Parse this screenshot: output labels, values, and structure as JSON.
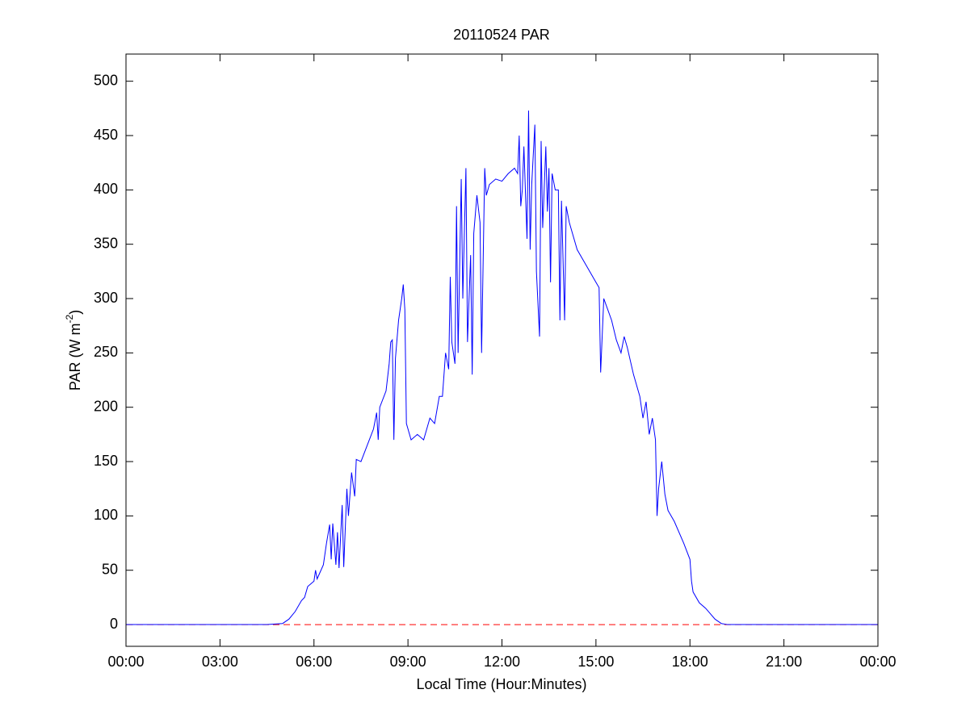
{
  "chart_data": {
    "type": "line",
    "title": "20110524 PAR",
    "xlabel": "Local Time (Hour:Minutes)",
    "ylabel": {
      "text": "PAR (W m",
      "sup": "-2",
      "end": ")"
    },
    "x": [
      0,
      3,
      4.5,
      5.0,
      5.2,
      5.4,
      5.6,
      5.7,
      5.8,
      6.0,
      6.05,
      6.1,
      6.3,
      6.4,
      6.5,
      6.55,
      6.6,
      6.7,
      6.75,
      6.8,
      6.9,
      6.95,
      7.05,
      7.1,
      7.2,
      7.3,
      7.35,
      7.5,
      7.7,
      7.9,
      8.0,
      8.05,
      8.1,
      8.3,
      8.4,
      8.45,
      8.5,
      8.55,
      8.6,
      8.7,
      8.8,
      8.85,
      8.9,
      8.95,
      9.0,
      9.1,
      9.3,
      9.5,
      9.7,
      9.85,
      10.0,
      10.1,
      10.2,
      10.3,
      10.35,
      10.4,
      10.5,
      10.55,
      10.6,
      10.7,
      10.75,
      10.85,
      10.9,
      11.0,
      11.05,
      11.1,
      11.2,
      11.3,
      11.35,
      11.45,
      11.5,
      11.6,
      11.8,
      12.0,
      12.2,
      12.4,
      12.5,
      12.55,
      12.6,
      12.65,
      12.7,
      12.8,
      12.85,
      12.9,
      12.95,
      13.05,
      13.1,
      13.2,
      13.25,
      13.3,
      13.4,
      13.45,
      13.5,
      13.55,
      13.6,
      13.7,
      13.8,
      13.85,
      13.9,
      14.0,
      14.05,
      14.15,
      14.25,
      14.4,
      14.7,
      15.0,
      15.1,
      15.15,
      15.25,
      15.5,
      15.65,
      15.8,
      15.9,
      16.0,
      16.2,
      16.4,
      16.5,
      16.6,
      16.7,
      16.8,
      16.9,
      16.95,
      17.0,
      17.1,
      17.2,
      17.3,
      17.5,
      17.8,
      18.0,
      18.05,
      18.1,
      18.3,
      18.5,
      18.8,
      19.0,
      19.2,
      24
    ],
    "series": [
      {
        "name": "PAR",
        "color": "#0000ff",
        "values": [
          0,
          0,
          0,
          1,
          5,
          12,
          22,
          25,
          35,
          40,
          50,
          42,
          55,
          75,
          92,
          60,
          93,
          55,
          85,
          52,
          110,
          53,
          125,
          100,
          140,
          118,
          152,
          150,
          165,
          180,
          195,
          170,
          200,
          215,
          240,
          260,
          262,
          170,
          245,
          280,
          300,
          313,
          290,
          185,
          180,
          170,
          175,
          170,
          190,
          185,
          210,
          210,
          250,
          235,
          320,
          260,
          240,
          385,
          250,
          410,
          300,
          420,
          260,
          340,
          230,
          360,
          395,
          370,
          250,
          420,
          395,
          405,
          410,
          408,
          415,
          420,
          415,
          450,
          385,
          400,
          440,
          355,
          473,
          345,
          405,
          460,
          325,
          265,
          445,
          365,
          440,
          380,
          420,
          315,
          415,
          400,
          400,
          280,
          390,
          280,
          385,
          370,
          360,
          345,
          330,
          315,
          310,
          232,
          300,
          280,
          262,
          250,
          265,
          255,
          230,
          210,
          190,
          205,
          175,
          190,
          170,
          100,
          125,
          150,
          120,
          105,
          95,
          75,
          60,
          40,
          30,
          20,
          15,
          5,
          1,
          0,
          0
        ]
      }
    ],
    "reference_line": {
      "value": 0,
      "color": "#ff0000"
    },
    "xlim": [
      0,
      24
    ],
    "xticks": [
      {
        "value": 0,
        "label": "00:00"
      },
      {
        "value": 3,
        "label": "03:00"
      },
      {
        "value": 6,
        "label": "06:00"
      },
      {
        "value": 9,
        "label": "09:00"
      },
      {
        "value": 12,
        "label": "12:00"
      },
      {
        "value": 15,
        "label": "15:00"
      },
      {
        "value": 18,
        "label": "18:00"
      },
      {
        "value": 21,
        "label": "21:00"
      },
      {
        "value": 24,
        "label": "00:00"
      }
    ],
    "ylim": [
      -20,
      525
    ],
    "yticks": [
      0,
      50,
      100,
      150,
      200,
      250,
      300,
      350,
      400,
      450,
      500
    ],
    "grid": false
  }
}
